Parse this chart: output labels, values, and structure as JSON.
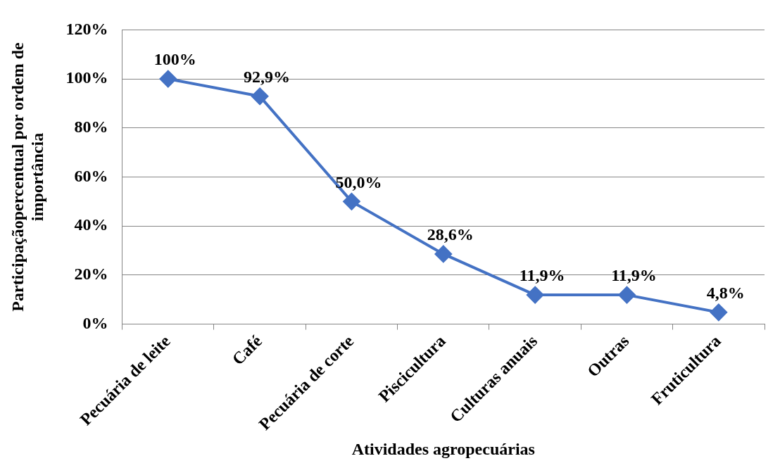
{
  "chart_data": {
    "type": "line",
    "xlabel": "Atividades agropecuárias",
    "ylabel": "Participaçãopercentual por ordem de importância",
    "categories": [
      "Pecuária de leite",
      "Café",
      "Pecuária de corte",
      "Piscicultura",
      "Culturas anuais",
      "Outras",
      "Fruticultura"
    ],
    "series": [
      {
        "color": "#4472c4",
        "values": [
          100,
          92.9,
          50.0,
          28.6,
          11.9,
          11.9,
          4.8
        ],
        "value_labels": [
          "100%",
          "92,9%",
          "50,0%",
          "28,6%",
          "11,9%",
          "11,9%",
          "4,8%"
        ]
      }
    ],
    "ylim": [
      0,
      120
    ],
    "yticks": [
      {
        "value": 0,
        "label": "0%"
      },
      {
        "value": 20,
        "label": "20%"
      },
      {
        "value": 40,
        "label": "40%"
      },
      {
        "value": 60,
        "label": "60%"
      },
      {
        "value": 80,
        "label": "80%"
      },
      {
        "value": 100,
        "label": "100%"
      },
      {
        "value": 120,
        "label": "120%"
      }
    ],
    "grid": "y",
    "legend": false,
    "marker": "diamond",
    "line_style": "solid"
  }
}
